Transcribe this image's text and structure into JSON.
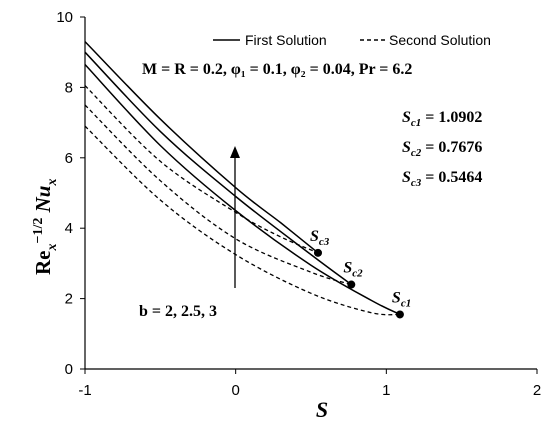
{
  "chart_data": {
    "type": "line",
    "xlabel": "S",
    "ylabel_main": "Re",
    "ylabel_sub": "x",
    "ylabel_sup": "−1/2",
    "ylabel_tail": " Nu",
    "ylabel_tail_sub": "x",
    "xlim": [
      -1,
      2
    ],
    "ylim": [
      0,
      10
    ],
    "x_ticks": [
      -1,
      0,
      1,
      2
    ],
    "y_ticks": [
      0,
      2,
      4,
      6,
      8,
      10
    ],
    "grid": false,
    "legend_position": "top",
    "legend": [
      {
        "label": "First Solution",
        "style": "solid"
      },
      {
        "label": "Second Solution",
        "style": "dashed"
      }
    ],
    "params_line": "M = R = 0.2, φ₁ = 0.1, φ₂ = 0.04, Pr = 6.2",
    "critical_values": [
      {
        "label": "Sc1 = 1.0902",
        "text": "S",
        "sub": "c1",
        "value": "= 1.0902"
      },
      {
        "label": "Sc2 = 0.7676",
        "text": "S",
        "sub": "c2",
        "value": "= 0.7676"
      },
      {
        "label": "Sc3 = 0.5464",
        "text": "S",
        "sub": "c3",
        "value": "= 0.5464"
      }
    ],
    "arrow_annotation": "b = 2, 2.5, 3",
    "series": [
      {
        "b": 2,
        "critical_label_sub": "c1",
        "critical_point": [
          1.0902,
          1.55
        ],
        "first": [
          [
            -1,
            8.65
          ],
          [
            -0.5,
            6.35
          ],
          [
            0,
            4.5
          ],
          [
            0.5,
            2.95
          ],
          [
            0.9,
            1.95
          ],
          [
            1.0902,
            1.55
          ]
        ],
        "second": [
          [
            -1,
            6.9
          ],
          [
            -0.5,
            4.8
          ],
          [
            0,
            3.25
          ],
          [
            0.5,
            2.15
          ],
          [
            0.9,
            1.6
          ],
          [
            1.0902,
            1.55
          ]
        ]
      },
      {
        "b": 2.5,
        "critical_label_sub": "c2",
        "critical_point": [
          0.7676,
          2.4
        ],
        "first": [
          [
            -1,
            9.0
          ],
          [
            -0.5,
            6.75
          ],
          [
            0,
            4.9
          ],
          [
            0.5,
            3.25
          ],
          [
            0.7676,
            2.4
          ]
        ],
        "second": [
          [
            -1,
            7.5
          ],
          [
            -0.5,
            5.35
          ],
          [
            0,
            3.7
          ],
          [
            0.5,
            2.75
          ],
          [
            0.7676,
            2.4
          ]
        ]
      },
      {
        "b": 3,
        "critical_label_sub": "c3",
        "critical_point": [
          0.5464,
          3.3
        ],
        "first": [
          [
            -1,
            9.3
          ],
          [
            -0.5,
            7.1
          ],
          [
            0,
            5.15
          ],
          [
            0.3,
            4.15
          ],
          [
            0.5464,
            3.3
          ]
        ],
        "second": [
          [
            -1,
            8.05
          ],
          [
            -0.5,
            5.9
          ],
          [
            0,
            4.45
          ],
          [
            0.3,
            3.75
          ],
          [
            0.5464,
            3.3
          ]
        ]
      }
    ],
    "colors": {
      "line": "#000000",
      "axis": "#000000",
      "background": "#ffffff"
    }
  }
}
